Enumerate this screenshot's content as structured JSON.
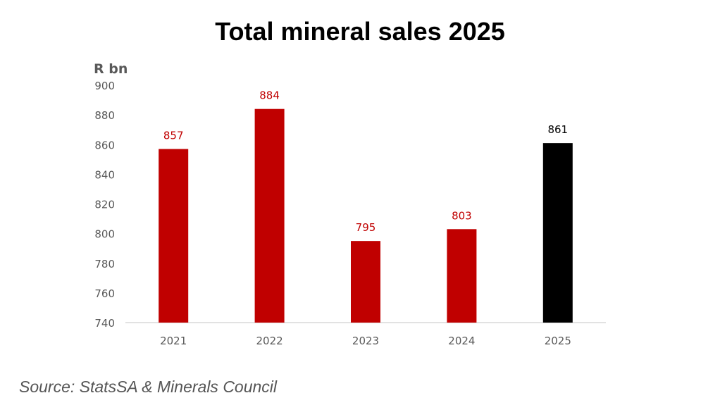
{
  "chart_data": {
    "type": "bar",
    "title": "Total mineral sales 2025",
    "ylabel": "R bn",
    "xlabel": "",
    "categories": [
      "2021",
      "2022",
      "2023",
      "2024",
      "2025"
    ],
    "values": [
      857,
      884,
      795,
      803,
      861
    ],
    "data_labels": [
      "857",
      "884",
      "795",
      "803",
      "861"
    ],
    "bar_colors": [
      "#c00000",
      "#c00000",
      "#c00000",
      "#c00000",
      "#000000"
    ],
    "ylim": [
      740,
      900
    ],
    "yticks": [
      740,
      760,
      780,
      800,
      820,
      840,
      860,
      880,
      900
    ],
    "grid": false,
    "legend": "none"
  },
  "source": "Source:  StatsSA & Minerals Council"
}
